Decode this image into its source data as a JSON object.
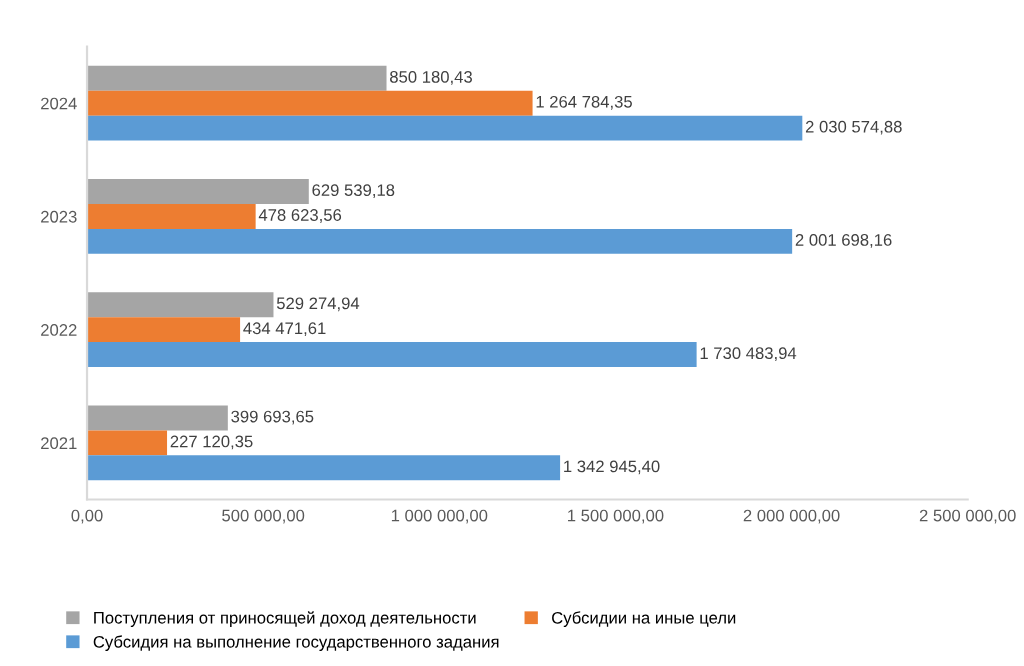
{
  "chart_data": {
    "type": "bar",
    "orientation": "horizontal",
    "categories": [
      "2024",
      "2023",
      "2022",
      "2021"
    ],
    "series": [
      {
        "name": "Поступления от приносящей доход деятельности",
        "color": "#a5a5a5",
        "values": [
          850180.43,
          629539.18,
          529274.94,
          399693.65
        ],
        "value_labels": [
          "850 180,43",
          "629 539,18",
          "529 274,94",
          "399 693,65"
        ]
      },
      {
        "name": "Субсидии на иные цели",
        "color": "#ed7d31",
        "values": [
          1264784.35,
          478623.56,
          434471.61,
          227120.35
        ],
        "value_labels": [
          "1 264 784,35",
          "478 623,56",
          "434 471,61",
          "227 120,35"
        ]
      },
      {
        "name": "Субсидия на выполнение государственного задания",
        "color": "#5b9bd5",
        "values": [
          2030574.88,
          2001698.16,
          1730483.94,
          1342945.4
        ],
        "value_labels": [
          "2 030 574,88",
          "2 001 698,16",
          "1 730 483,94",
          "1 342 945,40"
        ]
      }
    ],
    "xlim": [
      0,
      2500000
    ],
    "xticks": [
      {
        "value": 0,
        "label": "0,00"
      },
      {
        "value": 500000,
        "label": "500 000,00"
      },
      {
        "value": 1000000,
        "label": "1 000 000,00"
      },
      {
        "value": 1500000,
        "label": "1 500 000,00"
      },
      {
        "value": 2000000,
        "label": "2 000 000,00"
      },
      {
        "value": 2500000,
        "label": "2 500 000,00"
      }
    ],
    "grid": false,
    "legend": "bottom"
  }
}
